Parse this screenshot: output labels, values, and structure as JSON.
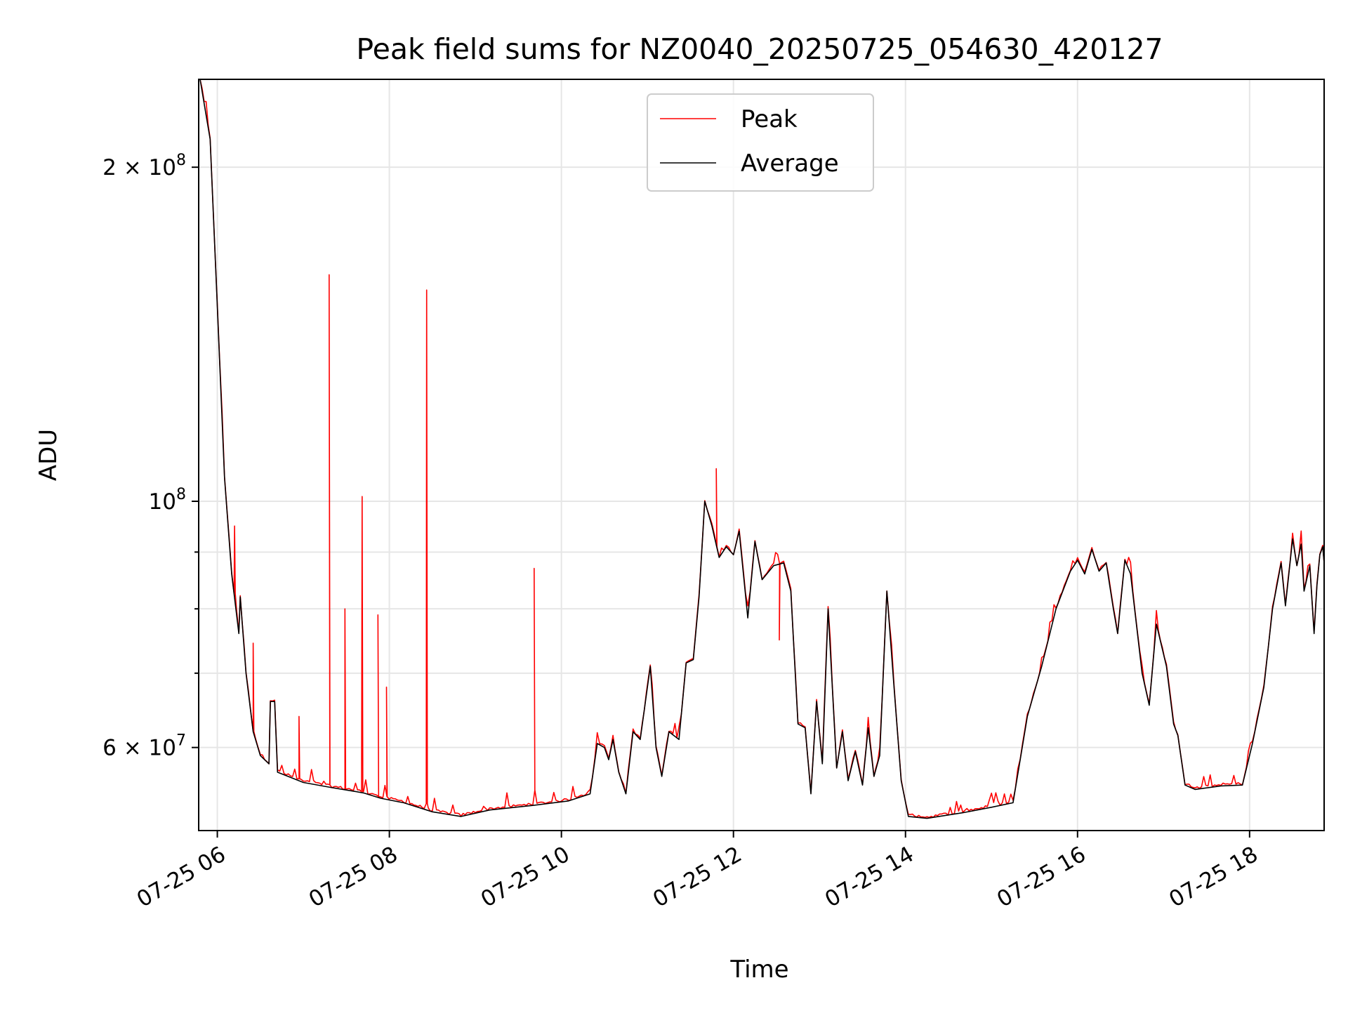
{
  "chart_data": {
    "type": "line",
    "title": "Peak field sums for NZ0040_20250725_054630_420127",
    "xlabel": "Time",
    "ylabel": "ADU",
    "y_scale": "log",
    "grid": true,
    "legend_position": "top-center",
    "xlim": [
      "2025-07-25 05:47",
      "2025-07-25 18:52"
    ],
    "ylim": [
      50500000,
      240000000
    ],
    "x_ticks": [
      {
        "value": "2025-07-25 06:00",
        "label": "07-25 06"
      },
      {
        "value": "2025-07-25 08:00",
        "label": "07-25 08"
      },
      {
        "value": "2025-07-25 10:00",
        "label": "07-25 10"
      },
      {
        "value": "2025-07-25 12:00",
        "label": "07-25 12"
      },
      {
        "value": "2025-07-25 14:00",
        "label": "07-25 14"
      },
      {
        "value": "2025-07-25 16:00",
        "label": "07-25 16"
      },
      {
        "value": "2025-07-25 18:00",
        "label": "07-25 18"
      }
    ],
    "y_major_ticks": [
      {
        "value": 60000000,
        "mantissa": "6",
        "exponent": "7"
      },
      {
        "value": 100000000,
        "mantissa": "",
        "exponent": "8"
      },
      {
        "value": 200000000,
        "mantissa": "2",
        "exponent": "8"
      }
    ],
    "y_minor_ticks": [
      70000000,
      80000000,
      90000000
    ],
    "series": [
      {
        "name": "Average",
        "color": "#000000",
        "points": [
          [
            "2025-07-25 05:48",
            240000000
          ],
          [
            "2025-07-25 05:55",
            212000000
          ],
          [
            "2025-07-25 06:00",
            150000000
          ],
          [
            "2025-07-25 06:05",
            105000000
          ],
          [
            "2025-07-25 06:10",
            86000000
          ],
          [
            "2025-07-25 06:15",
            76000000
          ],
          [
            "2025-07-25 06:16",
            82000000
          ],
          [
            "2025-07-25 06:20",
            70000000
          ],
          [
            "2025-07-25 06:25",
            62000000
          ],
          [
            "2025-07-25 06:30",
            59000000
          ],
          [
            "2025-07-25 06:36",
            58000000
          ],
          [
            "2025-07-25 06:37",
            66000000
          ],
          [
            "2025-07-25 06:40",
            66000000
          ],
          [
            "2025-07-25 06:42",
            57000000
          ],
          [
            "2025-07-25 07:00",
            55800000
          ],
          [
            "2025-07-25 07:20",
            55200000
          ],
          [
            "2025-07-25 07:35",
            54800000
          ],
          [
            "2025-07-25 07:42",
            54600000
          ],
          [
            "2025-07-25 07:54",
            54000000
          ],
          [
            "2025-07-25 08:10",
            53500000
          ],
          [
            "2025-07-25 08:30",
            52500000
          ],
          [
            "2025-07-25 08:50",
            52000000
          ],
          [
            "2025-07-25 09:10",
            52700000
          ],
          [
            "2025-07-25 09:40",
            53200000
          ],
          [
            "2025-07-25 10:05",
            53700000
          ],
          [
            "2025-07-25 10:20",
            54500000
          ],
          [
            "2025-07-25 10:25",
            60500000
          ],
          [
            "2025-07-25 10:30",
            60000000
          ],
          [
            "2025-07-25 10:33",
            58500000
          ],
          [
            "2025-07-25 10:36",
            61000000
          ],
          [
            "2025-07-25 10:40",
            57000000
          ],
          [
            "2025-07-25 10:45",
            54500000
          ],
          [
            "2025-07-25 10:50",
            62000000
          ],
          [
            "2025-07-25 10:55",
            61000000
          ],
          [
            "2025-07-25 11:02",
            71000000
          ],
          [
            "2025-07-25 11:06",
            60000000
          ],
          [
            "2025-07-25 11:10",
            56500000
          ],
          [
            "2025-07-25 11:15",
            62000000
          ],
          [
            "2025-07-25 11:22",
            61000000
          ],
          [
            "2025-07-25 11:27",
            71500000
          ],
          [
            "2025-07-25 11:32",
            72000000
          ],
          [
            "2025-07-25 11:36",
            82000000
          ],
          [
            "2025-07-25 11:40",
            100000000
          ],
          [
            "2025-07-25 11:45",
            95000000
          ],
          [
            "2025-07-25 11:50",
            89000000
          ],
          [
            "2025-07-25 11:55",
            91000000
          ],
          [
            "2025-07-25 12:00",
            89500000
          ],
          [
            "2025-07-25 12:04",
            94000000
          ],
          [
            "2025-07-25 12:10",
            78500000
          ],
          [
            "2025-07-25 12:15",
            92000000
          ],
          [
            "2025-07-25 12:20",
            85000000
          ],
          [
            "2025-07-25 12:28",
            87500000
          ],
          [
            "2025-07-25 12:35",
            88000000
          ],
          [
            "2025-07-25 12:40",
            83000000
          ],
          [
            "2025-07-25 12:45",
            63000000
          ],
          [
            "2025-07-25 12:50",
            62500000
          ],
          [
            "2025-07-25 12:54",
            54500000
          ],
          [
            "2025-07-25 12:58",
            66000000
          ],
          [
            "2025-07-25 13:02",
            58000000
          ],
          [
            "2025-07-25 13:06",
            80000000
          ],
          [
            "2025-07-25 13:12",
            57500000
          ],
          [
            "2025-07-25 13:16",
            62000000
          ],
          [
            "2025-07-25 13:20",
            56000000
          ],
          [
            "2025-07-25 13:25",
            59500000
          ],
          [
            "2025-07-25 13:30",
            55500000
          ],
          [
            "2025-07-25 13:34",
            62500000
          ],
          [
            "2025-07-25 13:38",
            56500000
          ],
          [
            "2025-07-25 13:42",
            59000000
          ],
          [
            "2025-07-25 13:47",
            83000000
          ],
          [
            "2025-07-25 13:52",
            68000000
          ],
          [
            "2025-07-25 13:57",
            56000000
          ],
          [
            "2025-07-25 14:02",
            52000000
          ],
          [
            "2025-07-25 14:15",
            51800000
          ],
          [
            "2025-07-25 14:40",
            52400000
          ],
          [
            "2025-07-25 15:00",
            53000000
          ],
          [
            "2025-07-25 15:15",
            53500000
          ],
          [
            "2025-07-25 15:20",
            58500000
          ],
          [
            "2025-07-25 15:25",
            64000000
          ],
          [
            "2025-07-25 15:35",
            71000000
          ],
          [
            "2025-07-25 15:45",
            80000000
          ],
          [
            "2025-07-25 15:55",
            86500000
          ],
          [
            "2025-07-25 16:00",
            88500000
          ],
          [
            "2025-07-25 16:05",
            86000000
          ],
          [
            "2025-07-25 16:10",
            90500000
          ],
          [
            "2025-07-25 16:15",
            86500000
          ],
          [
            "2025-07-25 16:20",
            88000000
          ],
          [
            "2025-07-25 16:25",
            80000000
          ],
          [
            "2025-07-25 16:28",
            76000000
          ],
          [
            "2025-07-25 16:33",
            88500000
          ],
          [
            "2025-07-25 16:37",
            86000000
          ],
          [
            "2025-07-25 16:45",
            70000000
          ],
          [
            "2025-07-25 16:50",
            65500000
          ],
          [
            "2025-07-25 16:55",
            77500000
          ],
          [
            "2025-07-25 17:02",
            71000000
          ],
          [
            "2025-07-25 17:07",
            63000000
          ],
          [
            "2025-07-25 17:10",
            61500000
          ],
          [
            "2025-07-25 17:15",
            55500000
          ],
          [
            "2025-07-25 17:22",
            55000000
          ],
          [
            "2025-07-25 17:40",
            55400000
          ],
          [
            "2025-07-25 17:55",
            55500000
          ],
          [
            "2025-07-25 18:02",
            60500000
          ],
          [
            "2025-07-25 18:10",
            68000000
          ],
          [
            "2025-07-25 18:16",
            80000000
          ],
          [
            "2025-07-25 18:22",
            88000000
          ],
          [
            "2025-07-25 18:25",
            80500000
          ],
          [
            "2025-07-25 18:30",
            92500000
          ],
          [
            "2025-07-25 18:33",
            87500000
          ],
          [
            "2025-07-25 18:36",
            91500000
          ],
          [
            "2025-07-25 18:38",
            83000000
          ],
          [
            "2025-07-25 18:42",
            87500000
          ],
          [
            "2025-07-25 18:45",
            76000000
          ],
          [
            "2025-07-25 18:47",
            84000000
          ],
          [
            "2025-07-25 18:49",
            89500000
          ],
          [
            "2025-07-25 18:51",
            91000000
          ],
          [
            "2025-07-25 18:52",
            88000000
          ]
        ]
      },
      {
        "name": "Peak",
        "color": "#ff0000",
        "spikes": [
          [
            "2025-07-25 06:12",
            95000000
          ],
          [
            "2025-07-25 06:25",
            74500000
          ],
          [
            "2025-07-25 06:57",
            64000000
          ],
          [
            "2025-07-25 07:18",
            160000000
          ],
          [
            "2025-07-25 07:29",
            80000000
          ],
          [
            "2025-07-25 07:41",
            101000000
          ],
          [
            "2025-07-25 07:52",
            79000000
          ],
          [
            "2025-07-25 07:58",
            68000000
          ],
          [
            "2025-07-25 08:26",
            155000000
          ],
          [
            "2025-07-25 09:41",
            87000000
          ],
          [
            "2025-07-25 11:48",
            107000000
          ],
          [
            "2025-07-25 12:32",
            75000000
          ]
        ]
      }
    ]
  }
}
